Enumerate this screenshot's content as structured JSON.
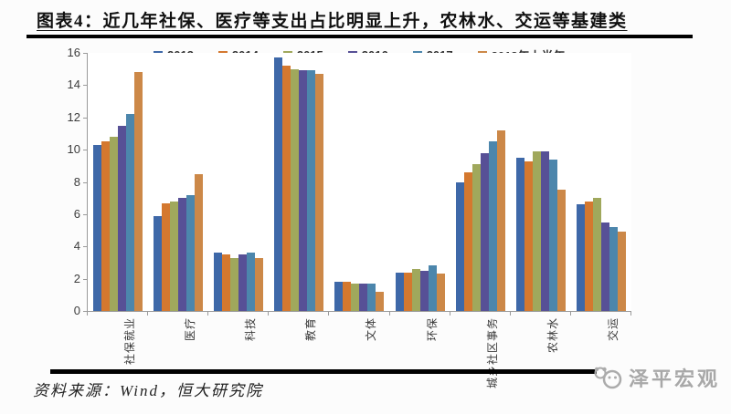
{
  "page": {
    "title": "图表4：近几年社保、医疗等支出占比明显上升，农林水、交运等基建类",
    "source": "资料来源：Wind，恒大研究院",
    "watermark": "泽平宏观"
  },
  "chart_data": {
    "type": "bar",
    "title": "图表4：近几年社保、医疗等支出占比明显上升，农林水、交运等基建类",
    "categories": [
      "社保就业",
      "医疗",
      "科技",
      "教育",
      "文体",
      "环保",
      "城乡社区事务",
      "农林水",
      "交运"
    ],
    "series": [
      {
        "name": "2013",
        "color": "#3E68A8",
        "values": [
          10.3,
          5.9,
          3.6,
          15.7,
          1.8,
          2.4,
          8.0,
          9.5,
          6.6
        ]
      },
      {
        "name": "2014",
        "color": "#D4782F",
        "values": [
          10.5,
          6.7,
          3.5,
          15.2,
          1.8,
          2.4,
          8.6,
          9.3,
          6.8
        ]
      },
      {
        "name": "2015",
        "color": "#A0A85C",
        "values": [
          10.8,
          6.8,
          3.3,
          15.0,
          1.7,
          2.6,
          9.1,
          9.9,
          7.0
        ]
      },
      {
        "name": "2016",
        "color": "#575096",
        "values": [
          11.5,
          7.0,
          3.5,
          14.9,
          1.7,
          2.5,
          9.8,
          9.9,
          5.5
        ]
      },
      {
        "name": "2017",
        "color": "#4C86AC",
        "values": [
          12.2,
          7.2,
          3.6,
          14.9,
          1.7,
          2.8,
          10.5,
          9.4,
          5.2
        ]
      },
      {
        "name": "2018年上半年",
        "color": "#CC8848",
        "values": [
          14.8,
          8.5,
          3.3,
          14.7,
          1.2,
          2.3,
          11.2,
          7.5,
          4.9
        ]
      }
    ],
    "ylim": [
      0,
      16
    ],
    "yticks": [
      0,
      2,
      4,
      6,
      8,
      10,
      12,
      14,
      16
    ],
    "xlabel": "",
    "ylabel": "",
    "grid": false,
    "legend_position": "top"
  }
}
